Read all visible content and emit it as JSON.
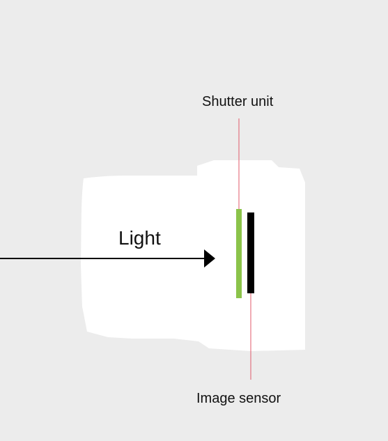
{
  "labels": {
    "shutter": "Shutter unit",
    "sensor": "Image sensor",
    "light": "Light"
  },
  "colors": {
    "background": "#ececec",
    "camera_body": "#ffffff",
    "shutter_unit": "#8bc34a",
    "image_sensor": "#000000",
    "leader_line": "#e05a6a",
    "light_arrow": "#000000"
  }
}
